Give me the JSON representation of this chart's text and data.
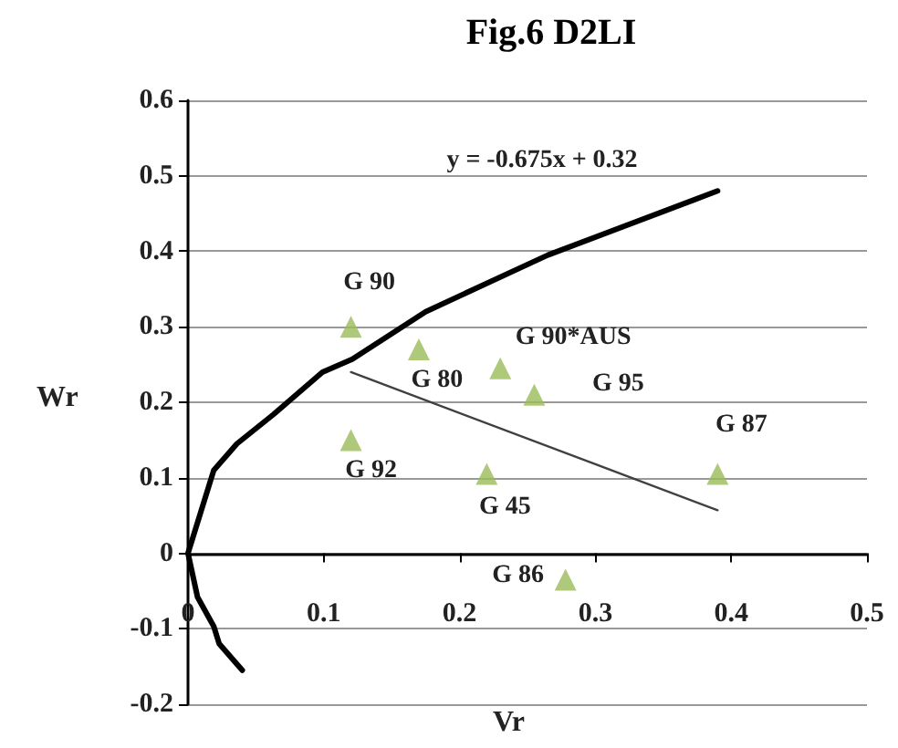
{
  "chart_data": {
    "type": "scatter",
    "title": "Fig.6 D2LI",
    "xlabel": "Vr",
    "ylabel": "Wr",
    "xlim": [
      0,
      0.5
    ],
    "xticks": [
      0,
      0.1,
      0.2,
      0.3,
      0.4,
      0.5
    ],
    "ylim": [
      -0.2,
      0.6
    ],
    "yticks": [
      -0.2,
      -0.1,
      0,
      0.1,
      0.2,
      0.3,
      0.4,
      0.5,
      0.6
    ],
    "grid": "y",
    "series": [
      {
        "marker": "triangle",
        "color": "#9bbb59",
        "x": [
          0.12,
          0.17,
          0.23,
          0.255,
          0.12,
          0.22,
          0.39,
          0.278
        ],
        "values": [
          0.3,
          0.27,
          0.245,
          0.21,
          0.15,
          0.105,
          0.105,
          -0.035
        ]
      },
      {
        "type": "line",
        "marker": "none",
        "line_style": "solid",
        "color": "#000000",
        "x": [
          0.04,
          0.023,
          0.019,
          0.007,
          0,
          0.019,
          0.036,
          0.063,
          0.099,
          0.121,
          0.175,
          0.265,
          0.39
        ],
        "values": [
          -0.155,
          -0.12,
          -0.097,
          -0.058,
          0,
          0.11,
          0.145,
          0.184,
          0.24,
          0.257,
          0.32,
          0.395,
          0.48
        ]
      },
      {
        "type": "line",
        "marker": "none",
        "line_style": "solid",
        "color": "#404040",
        "x": [
          0.12,
          0.39
        ],
        "values": [
          0.24,
          0.057
        ]
      }
    ],
    "annotations": [
      "y = -0.675x + 0.32",
      {
        "text": "G 90",
        "x": 0.12,
        "y": 0.3
      },
      {
        "text": "G 80",
        "x": 0.17,
        "y": 0.27
      },
      {
        "text": "G 90*AUS",
        "x": 0.23,
        "y": 0.245
      },
      {
        "text": "G 95",
        "x": 0.255,
        "y": 0.21
      },
      {
        "text": "G 92",
        "x": 0.12,
        "y": 0.15
      },
      {
        "text": "G 45",
        "x": 0.22,
        "y": 0.105
      },
      {
        "text": "G 87",
        "x": 0.39,
        "y": 0.105
      },
      {
        "text": "G 86",
        "x": 0.278,
        "y": -0.035
      }
    ]
  }
}
